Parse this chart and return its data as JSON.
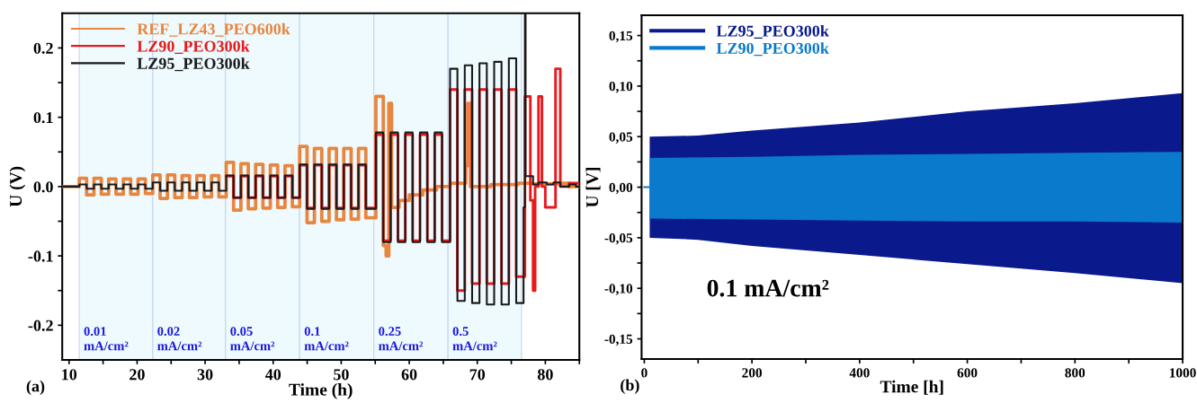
{
  "chart_data": [
    {
      "type": "step",
      "xlabel": "Time (h)",
      "ylabel": "U (V)",
      "xlim": [
        9,
        85
      ],
      "ylim": [
        -0.25,
        0.25
      ],
      "xticks": [
        10,
        {
          "value": 15,
          "label": null
        },
        20,
        {
          "value": 25,
          "label": null
        },
        30,
        {
          "value": 35,
          "label": null
        },
        40,
        {
          "value": 45,
          "label": null
        },
        50,
        {
          "value": 55,
          "label": null
        },
        60,
        {
          "value": 65,
          "label": null
        },
        70,
        {
          "value": 75,
          "label": null
        },
        80,
        {
          "value": 85,
          "label": null
        }
      ],
      "yticks": [
        {
          "value": -0.2,
          "label": "-0.2"
        },
        {
          "value": -0.15,
          "label": null
        },
        {
          "value": -0.1,
          "label": "-0.1"
        },
        {
          "value": -0.05,
          "label": null
        },
        {
          "value": 0.0,
          "label": "0.0"
        },
        {
          "value": 0.05,
          "label": null
        },
        0.1,
        {
          "value": 0.15,
          "label": null
        },
        0.2
      ],
      "grid": false,
      "legend": "top left",
      "marker": "none",
      "line_style": "solid",
      "annotations": [
        "(a)"
      ],
      "bands": [
        {
          "axis": "x",
          "from": 11.5,
          "to": 22.3,
          "label": "0.01 mA/cm²",
          "color": "#eefafd"
        },
        {
          "axis": "x",
          "from": 22.3,
          "to": 33.0,
          "label": "0.02 mA/cm²",
          "color": "#eefafd"
        },
        {
          "axis": "x",
          "from": 33.0,
          "to": 43.9,
          "label": "0.05 mA/cm²",
          "color": "#eefafd"
        },
        {
          "axis": "x",
          "from": 43.9,
          "to": 54.8,
          "label": "0.1 mA/cm²",
          "color": "#eefafd"
        },
        {
          "axis": "x",
          "from": 54.8,
          "to": 65.7,
          "label": "0.25 mA/cm²",
          "color": "#eefafd"
        },
        {
          "axis": "x",
          "from": 65.7,
          "to": 76.5,
          "label": "0.5 mA/cm²",
          "color": "#eefafd"
        }
      ],
      "series": [
        {
          "name": "REF_LZ43_PEO600k",
          "color": "#e8853f",
          "x": [
            9,
            11.5,
            12.58,
            13.66,
            14.74,
            15.82,
            16.9,
            17.98,
            19.06,
            20.14,
            21.22,
            22.3,
            23.38,
            24.46,
            25.54,
            26.62,
            27.7,
            28.78,
            29.86,
            30.94,
            32.02,
            33.1,
            34.18,
            35.26,
            36.34,
            37.42,
            38.5,
            39.58,
            40.66,
            41.74,
            42.82,
            43.9,
            44.98,
            46.06,
            47.14,
            48.22,
            49.3,
            50.38,
            51.46,
            52.54,
            53.62,
            55.1,
            56.18,
            56.6,
            57.0,
            57.4,
            58.5,
            60,
            62,
            64,
            66,
            68.3,
            68.6,
            69,
            72,
            76,
            78,
            80,
            82,
            83.5,
            85
          ],
          "values": [
            0,
            0.012,
            -0.012,
            0.012,
            -0.011,
            0.011,
            -0.011,
            0.011,
            -0.011,
            0.011,
            -0.01,
            0.017,
            -0.017,
            0.017,
            -0.016,
            0.016,
            -0.016,
            0.016,
            -0.015,
            0.016,
            -0.015,
            0.035,
            -0.034,
            0.033,
            -0.032,
            0.032,
            -0.031,
            0.031,
            -0.03,
            0.03,
            -0.029,
            0.058,
            -0.052,
            0.055,
            -0.05,
            0.055,
            -0.048,
            0.055,
            -0.047,
            0.055,
            -0.045,
            0.13,
            -0.085,
            -0.1,
            0.12,
            -0.03,
            -0.02,
            -0.012,
            -0.005,
            0.0,
            0.005,
            0.03,
            0.12,
            0.0,
            0.003,
            0.005,
            0.004,
            0.004,
            0.005,
            0.0,
            0.0
          ]
        },
        {
          "name": "LZ90_PEO300k",
          "color": "#e8191c",
          "x": [
            33.1,
            34.18,
            35.26,
            36.34,
            37.42,
            38.5,
            39.58,
            40.66,
            41.74,
            42.82,
            43.9,
            44.98,
            46.06,
            47.14,
            48.22,
            49.3,
            50.38,
            51.46,
            52.54,
            53.62,
            55.1,
            56.18,
            57.26,
            58.34,
            59.42,
            60.5,
            61.58,
            62.66,
            63.74,
            64.82,
            66.0,
            67.08,
            68.16,
            69.24,
            70.32,
            71.4,
            72.48,
            73.56,
            74.64,
            75.72,
            77.0,
            77.8,
            78.2,
            78.5,
            79.0,
            79.5,
            80.0,
            81.5,
            82.2,
            83.5,
            85
          ],
          "values": [
            0.015,
            -0.016,
            0.015,
            -0.016,
            0.015,
            -0.016,
            0.015,
            -0.016,
            0.015,
            -0.016,
            0.031,
            -0.031,
            0.031,
            -0.031,
            0.031,
            -0.031,
            0.031,
            -0.031,
            0.031,
            -0.031,
            0.075,
            -0.078,
            0.075,
            -0.078,
            0.075,
            -0.078,
            0.075,
            -0.078,
            0.075,
            -0.078,
            0.14,
            -0.15,
            0.14,
            -0.14,
            0.14,
            -0.14,
            0.14,
            -0.14,
            0.14,
            -0.13,
            0.13,
            -0.02,
            -0.15,
            0.0,
            0.13,
            0.0,
            -0.03,
            0.17,
            0.0,
            0.005,
            0.005
          ]
        },
        {
          "name": "LZ95_PEO300k",
          "color": "#1a1a1a",
          "x": [
            9,
            11.5,
            12.58,
            13.66,
            14.74,
            15.82,
            16.9,
            17.98,
            19.06,
            20.14,
            21.22,
            22.3,
            23.38,
            24.46,
            25.54,
            26.62,
            27.7,
            28.78,
            29.86,
            30.94,
            32.02,
            33.1,
            34.18,
            35.26,
            36.34,
            37.42,
            38.5,
            39.58,
            40.66,
            41.74,
            42.82,
            43.9,
            44.98,
            46.06,
            47.14,
            48.22,
            49.3,
            50.38,
            51.46,
            52.54,
            53.62,
            55.1,
            56.18,
            57.26,
            58.34,
            59.42,
            60.5,
            61.58,
            62.66,
            63.74,
            64.82,
            66.0,
            67.08,
            68.16,
            69.24,
            70.32,
            71.4,
            72.48,
            73.56,
            74.64,
            75.72,
            76.8,
            77.0,
            77.1,
            78.2,
            79.0,
            80.2,
            81.2,
            82.2,
            83.5,
            84.5,
            85
          ],
          "values": [
            0,
            0.003,
            -0.003,
            0.003,
            -0.003,
            0.003,
            -0.003,
            0.003,
            -0.003,
            0.003,
            -0.003,
            0.006,
            -0.006,
            0.006,
            -0.006,
            0.006,
            -0.006,
            0.006,
            -0.006,
            0.006,
            -0.006,
            0.016,
            -0.016,
            0.016,
            -0.016,
            0.016,
            -0.016,
            0.016,
            -0.016,
            0.016,
            -0.016,
            0.032,
            -0.032,
            0.032,
            -0.032,
            0.032,
            -0.032,
            0.032,
            -0.032,
            0.032,
            -0.032,
            0.078,
            -0.08,
            0.078,
            -0.08,
            0.078,
            -0.08,
            0.078,
            -0.08,
            0.078,
            -0.08,
            0.17,
            -0.165,
            0.175,
            -0.168,
            0.178,
            -0.17,
            0.18,
            -0.17,
            0.185,
            -0.168,
            -0.03,
            0.25,
            0.015,
            0.003,
            0.006,
            0.003,
            0.006,
            0.0,
            0.003,
            0.0,
            0.0
          ]
        }
      ]
    },
    {
      "type": "line",
      "xlabel": "Time [h]",
      "ylabel": "U [V]",
      "xlim": [
        -5,
        1000
      ],
      "ylim": [
        -0.17,
        0.17
      ],
      "xticks": [
        0,
        {
          "value": 100,
          "label": null
        },
        200,
        {
          "value": 300,
          "label": null
        },
        400,
        {
          "value": 500,
          "label": null
        },
        600,
        {
          "value": 700,
          "label": null
        },
        800,
        {
          "value": 900,
          "label": null
        },
        1000
      ],
      "yticks": [
        {
          "value": -0.15,
          "label": "-0,15"
        },
        {
          "value": -0.125,
          "label": null
        },
        {
          "value": -0.1,
          "label": "-0,10"
        },
        {
          "value": -0.075,
          "label": null
        },
        {
          "value": -0.05,
          "label": "-0,05"
        },
        {
          "value": -0.025,
          "label": null
        },
        {
          "value": 0.0,
          "label": "0,00"
        },
        {
          "value": 0.025,
          "label": null
        },
        {
          "value": 0.05,
          "label": "0,05"
        },
        {
          "value": 0.075,
          "label": null
        },
        {
          "value": 0.1,
          "label": "0,10"
        },
        {
          "value": 0.125,
          "label": null
        },
        {
          "value": 0.15,
          "label": "0,15"
        }
      ],
      "grid": false,
      "legend": "top left",
      "marker": "none",
      "line_style": "solid",
      "annotations": [
        "0.1 mA/cm²",
        "(b)"
      ],
      "series": [
        {
          "name": "LZ95_PEO300k",
          "color": "#0a1a8c",
          "x": [
            10,
            100,
            200,
            400,
            600,
            800,
            1000
          ],
          "values": [
            null,
            null,
            null,
            null,
            null,
            null,
            null
          ],
          "lower": [
            -0.05,
            -0.052,
            -0.058,
            -0.067,
            -0.076,
            -0.085,
            -0.095
          ],
          "upper": [
            0.05,
            0.051,
            0.056,
            0.064,
            0.075,
            0.083,
            0.093
          ]
        },
        {
          "name": "LZ90_PEO300k",
          "color": "#0a7acc",
          "x": [
            0,
            10,
            10,
            200,
            400,
            600,
            800,
            1000
          ],
          "values": [
            0,
            0,
            null,
            null,
            null,
            null,
            null,
            null
          ],
          "lower": [
            null,
            null,
            -0.031,
            -0.032,
            -0.033,
            -0.034,
            -0.034,
            -0.035
          ],
          "upper": [
            null,
            null,
            0.029,
            0.03,
            0.032,
            0.033,
            0.034,
            0.035
          ]
        }
      ]
    }
  ]
}
